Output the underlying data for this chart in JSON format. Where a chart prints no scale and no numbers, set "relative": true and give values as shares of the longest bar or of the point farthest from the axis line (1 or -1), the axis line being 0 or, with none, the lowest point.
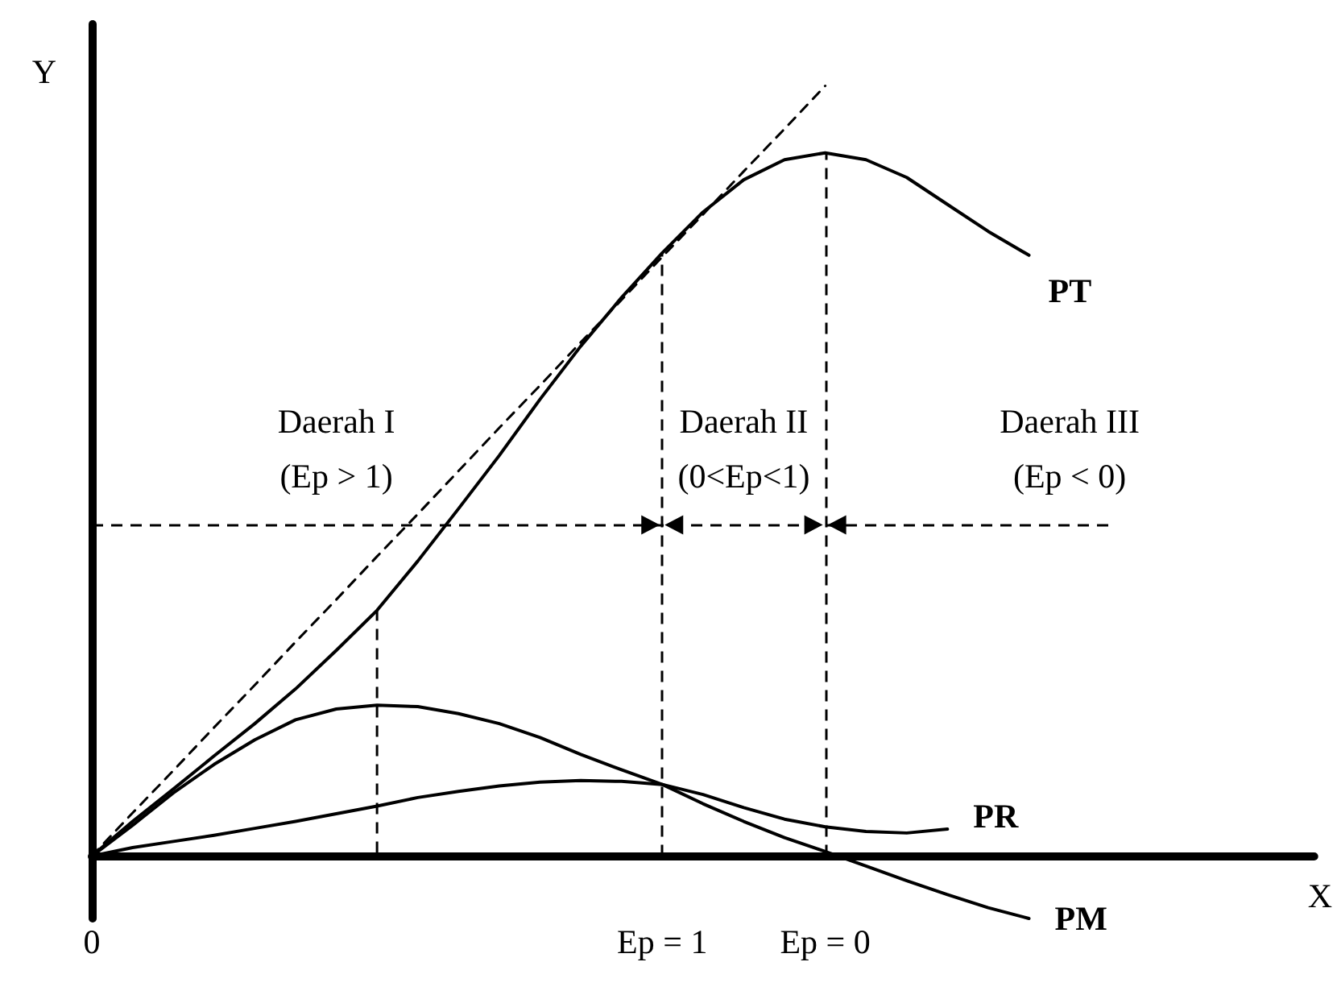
{
  "chart_data": {
    "type": "line",
    "relative": true,
    "xlabel": "X",
    "ylabel": "Y",
    "categories": [
      "0",
      null,
      null,
      null,
      null,
      null,
      null,
      null,
      null,
      null,
      null,
      null,
      null,
      null,
      "Ep = 1",
      null,
      null,
      null,
      "Ep = 0",
      null,
      null,
      null,
      null,
      null,
      null,
      null,
      null,
      null,
      null,
      null,
      null
    ],
    "series": [
      {
        "name": "PT",
        "color": "#000000",
        "values": [
          0,
          0.045,
          0.087,
          0.13,
          0.172,
          0.217,
          0.267,
          0.319,
          0.383,
          0.451,
          0.52,
          0.593,
          0.662,
          0.725,
          0.783,
          0.836,
          0.878,
          0.904,
          0.913,
          0.904,
          0.881,
          0.846,
          0.811,
          0.78,
          null,
          null,
          null,
          null,
          null,
          null,
          null
        ]
      },
      {
        "name": "PR",
        "color": "#000000",
        "values": [
          0,
          0.011,
          0.019,
          0.027,
          0.036,
          0.045,
          0.055,
          0.065,
          0.076,
          0.084,
          0.091,
          0.096,
          0.098,
          0.097,
          0.093,
          0.08,
          0.063,
          0.048,
          0.038,
          0.032,
          0.03,
          0.035,
          null,
          null,
          null,
          null,
          null,
          null,
          null,
          null,
          null
        ]
      },
      {
        "name": "PM",
        "color": "#000000",
        "values": [
          0,
          0.04,
          0.082,
          0.119,
          0.151,
          0.177,
          0.191,
          0.196,
          0.194,
          0.185,
          0.172,
          0.154,
          0.132,
          0.112,
          0.093,
          0.068,
          0.045,
          0.024,
          0.006,
          -0.013,
          -0.032,
          -0.05,
          -0.067,
          -0.081,
          null,
          null,
          null,
          null,
          null,
          null,
          null
        ]
      },
      {
        "color": "#000000",
        "line_style": "dashed",
        "values": [
          0,
          0.056,
          0.111,
          0.167,
          0.222,
          0.278,
          0.333,
          0.389,
          0.444,
          0.5,
          0.556,
          0.611,
          0.667,
          0.722,
          0.778,
          0.833,
          0.889,
          0.944,
          1.0,
          null,
          null,
          null,
          null,
          null,
          null,
          null,
          null,
          null,
          null,
          null,
          null
        ]
      }
    ],
    "ref_lines": [
      {
        "axis": "x",
        "value": "Ep = 1"
      },
      {
        "axis": "x",
        "value": "Ep = 0"
      },
      {
        "axis": "y",
        "value": 0.43
      }
    ],
    "annotations": [
      "Daerah I\n(Ep > 1)",
      "Daerah II\n(0<Ep<1)",
      "Daerah III\n(Ep < 0)"
    ],
    "marker": "none",
    "line_style": "solid",
    "grid": false,
    "legend": false
  }
}
